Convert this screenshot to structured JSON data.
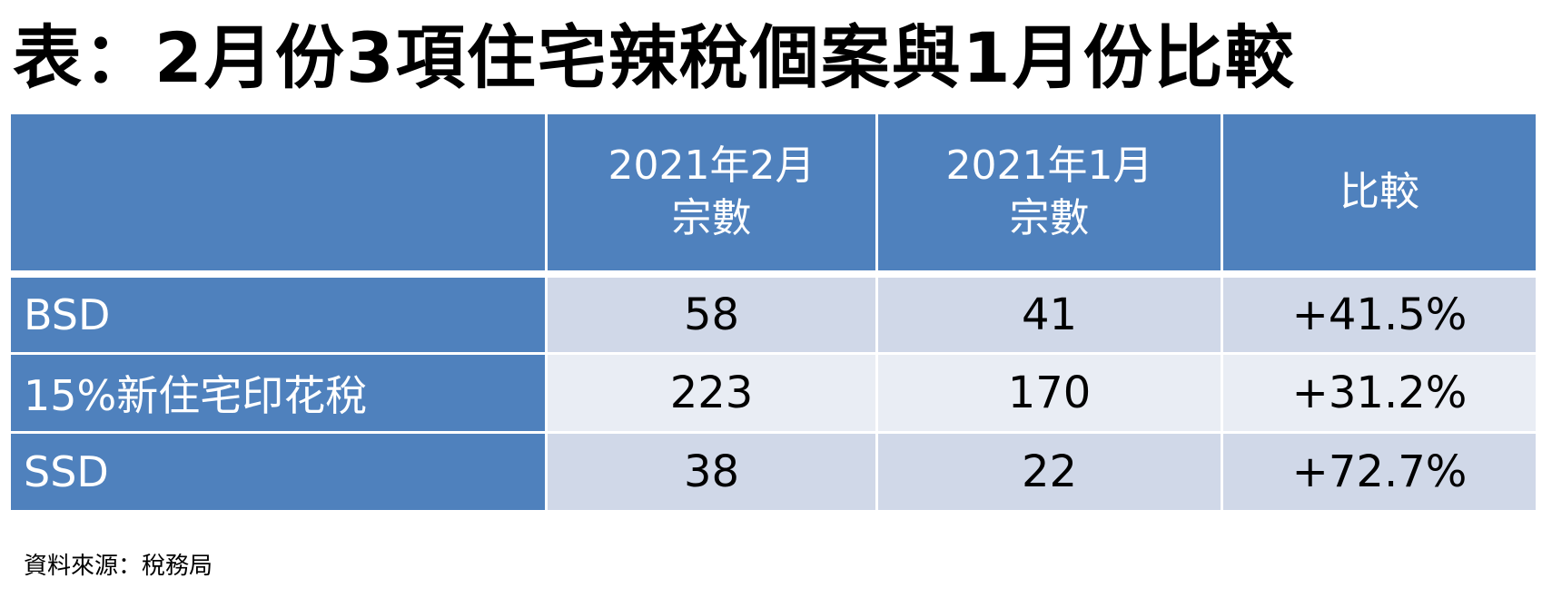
{
  "title": "表：2月份3項住宅辣稅個案與1月份比較",
  "table": {
    "headers": [
      {
        "line1": "",
        "line2": ""
      },
      {
        "line1": "2021年2月",
        "line2": "宗數"
      },
      {
        "line1": "2021年1月",
        "line2": "宗數"
      },
      {
        "line1": "比較",
        "line2": ""
      }
    ],
    "rows": [
      {
        "label": "BSD",
        "feb": "58",
        "jan": "41",
        "change": "+41.5%"
      },
      {
        "label": "15%新住宅印花稅",
        "feb": "223",
        "jan": "170",
        "change": "+31.2%"
      },
      {
        "label": "SSD",
        "feb": "38",
        "jan": "22",
        "change": "+72.7%"
      }
    ]
  },
  "source": "資料來源：稅務局",
  "colors": {
    "header_blue": "#4f81bd",
    "band_dark": "#d0d8e8",
    "band_light": "#e9edf4"
  }
}
